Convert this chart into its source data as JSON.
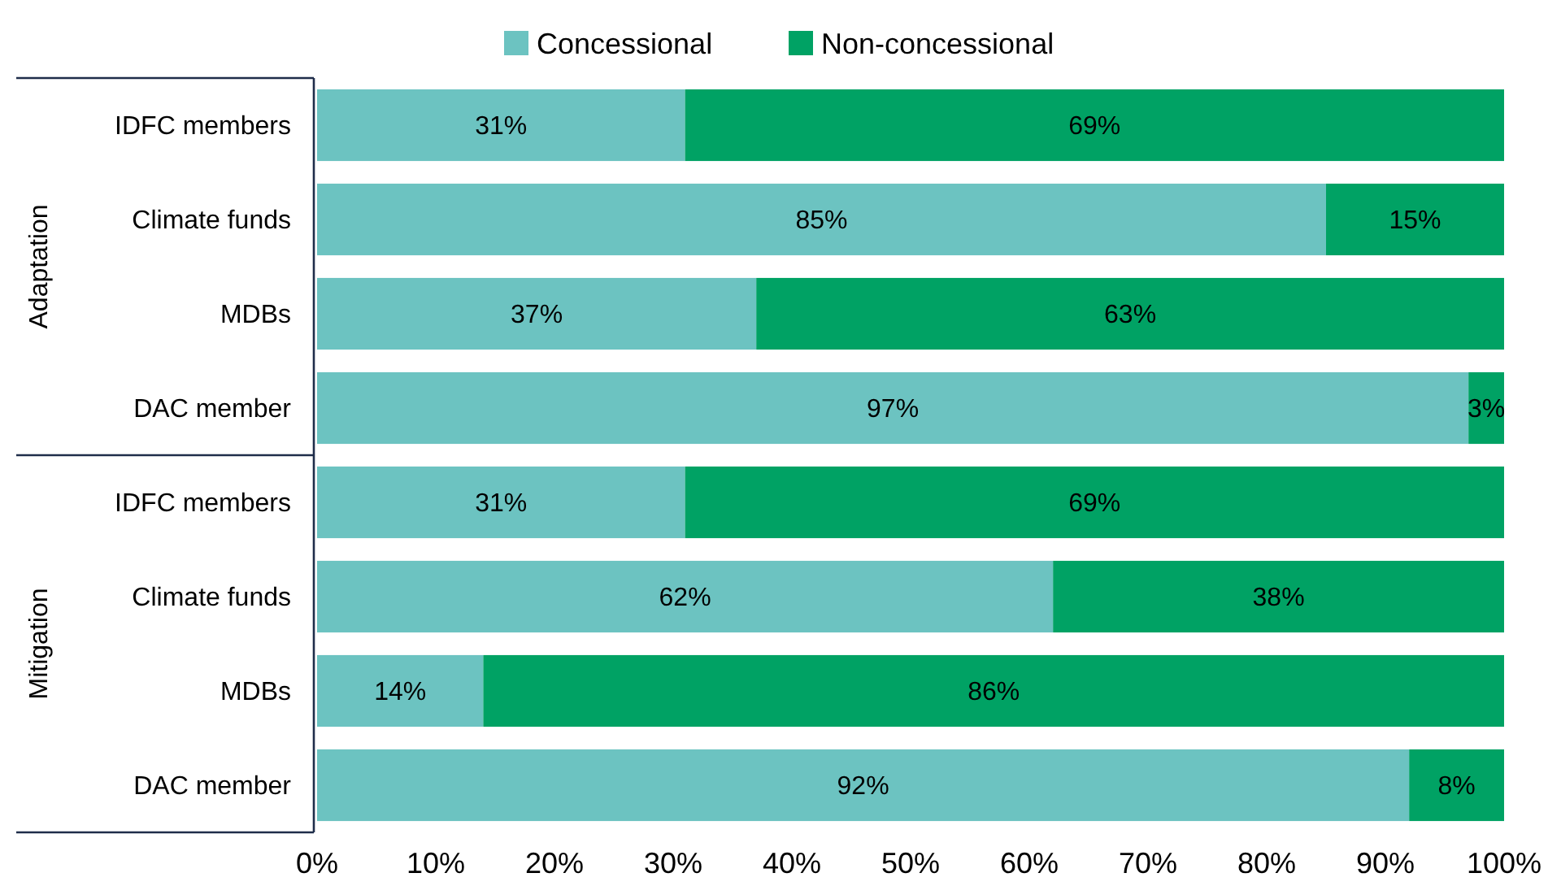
{
  "chart_data": {
    "type": "bar",
    "orientation": "horizontal",
    "stacked": true,
    "categories": [
      "IDFC members",
      "Climate funds",
      "MDBs",
      "DAC member",
      "IDFC members",
      "Climate funds",
      "MDBs",
      "DAC member"
    ],
    "series": [
      {
        "name": "Concessional",
        "color": "#6cc3c1",
        "values": [
          31,
          85,
          37,
          97,
          31,
          62,
          14,
          92
        ],
        "value_labels": [
          "31%",
          "85%",
          "37%",
          "97%",
          "31%",
          "62%",
          "14%",
          "92%"
        ]
      },
      {
        "name": "Non-concessional",
        "color": "#00a264",
        "values": [
          69,
          15,
          63,
          3,
          69,
          38,
          86,
          8
        ],
        "value_labels": [
          "69%",
          "15%",
          "63%",
          "3%",
          "69%",
          "38%",
          "86%",
          "8%"
        ]
      }
    ],
    "xlim": [
      0,
      100
    ],
    "xticks": [
      {
        "value": 0,
        "label": "0%"
      },
      {
        "value": 10,
        "label": "10%"
      },
      {
        "value": 20,
        "label": "20%"
      },
      {
        "value": 30,
        "label": "30%"
      },
      {
        "value": 40,
        "label": "40%"
      },
      {
        "value": 50,
        "label": "50%"
      },
      {
        "value": 60,
        "label": "60%"
      },
      {
        "value": 70,
        "label": "70%"
      },
      {
        "value": 80,
        "label": "80%"
      },
      {
        "value": 90,
        "label": "90%"
      },
      {
        "value": 100,
        "label": "100%"
      }
    ],
    "annotations": [
      "Adaptation",
      "Mitigation"
    ],
    "legend": "top",
    "grid": false
  }
}
